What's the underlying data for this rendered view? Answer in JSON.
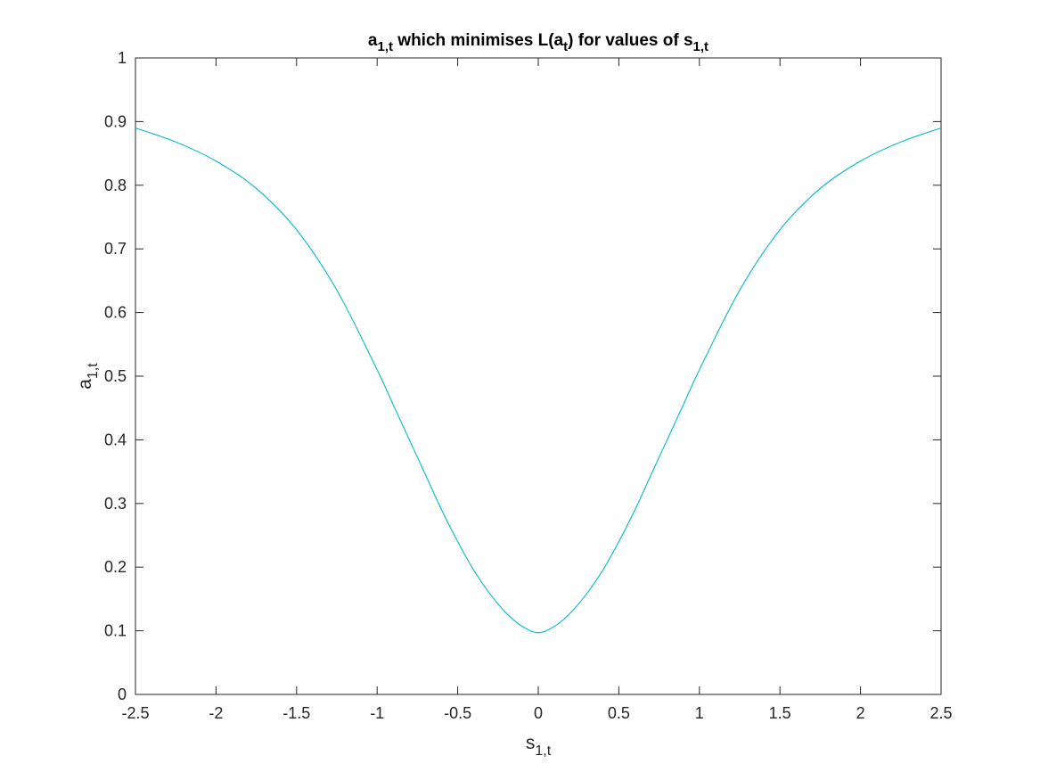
{
  "chart_data": {
    "type": "line",
    "title": {
      "parts": [
        {
          "text": "a",
          "sub": false
        },
        {
          "text": "1,t",
          "sub": true
        },
        {
          "text": " which minimises L(a",
          "sub": false
        },
        {
          "text": "t",
          "sub": true
        },
        {
          "text": ") for values of s",
          "sub": false
        },
        {
          "text": "1,t",
          "sub": true
        }
      ]
    },
    "xlabel": {
      "main": "s",
      "sub": "1,t"
    },
    "ylabel": {
      "main": "a",
      "sub": "1,t"
    },
    "xlim": [
      -2.5,
      2.5
    ],
    "ylim": [
      0,
      1
    ],
    "xticks": [
      -2.5,
      -2,
      -1.5,
      -1,
      -0.5,
      0,
      0.5,
      1,
      1.5,
      2,
      2.5
    ],
    "yticks": [
      0,
      0.1,
      0.2,
      0.3,
      0.4,
      0.5,
      0.6,
      0.7,
      0.8,
      0.9,
      1
    ],
    "grid": false,
    "box": true,
    "series": [
      {
        "color": "#17BECF",
        "x": [
          -2.5,
          -2.25,
          -2.0,
          -1.75,
          -1.5,
          -1.25,
          -1.0,
          -0.9,
          -0.8,
          -0.7,
          -0.6,
          -0.5,
          -0.4,
          -0.3,
          -0.2,
          -0.1,
          0.0,
          0.1,
          0.2,
          0.3,
          0.4,
          0.5,
          0.6,
          0.7,
          0.8,
          0.9,
          1.0,
          1.25,
          1.5,
          1.75,
          2.0,
          2.25,
          2.5
        ],
        "y": [
          0.89,
          0.868,
          0.838,
          0.795,
          0.73,
          0.635,
          0.51,
          0.455,
          0.4,
          0.345,
          0.29,
          0.24,
          0.195,
          0.158,
          0.128,
          0.107,
          0.097,
          0.107,
          0.128,
          0.158,
          0.195,
          0.24,
          0.29,
          0.345,
          0.4,
          0.455,
          0.51,
          0.635,
          0.73,
          0.795,
          0.838,
          0.868,
          0.89
        ]
      }
    ]
  }
}
